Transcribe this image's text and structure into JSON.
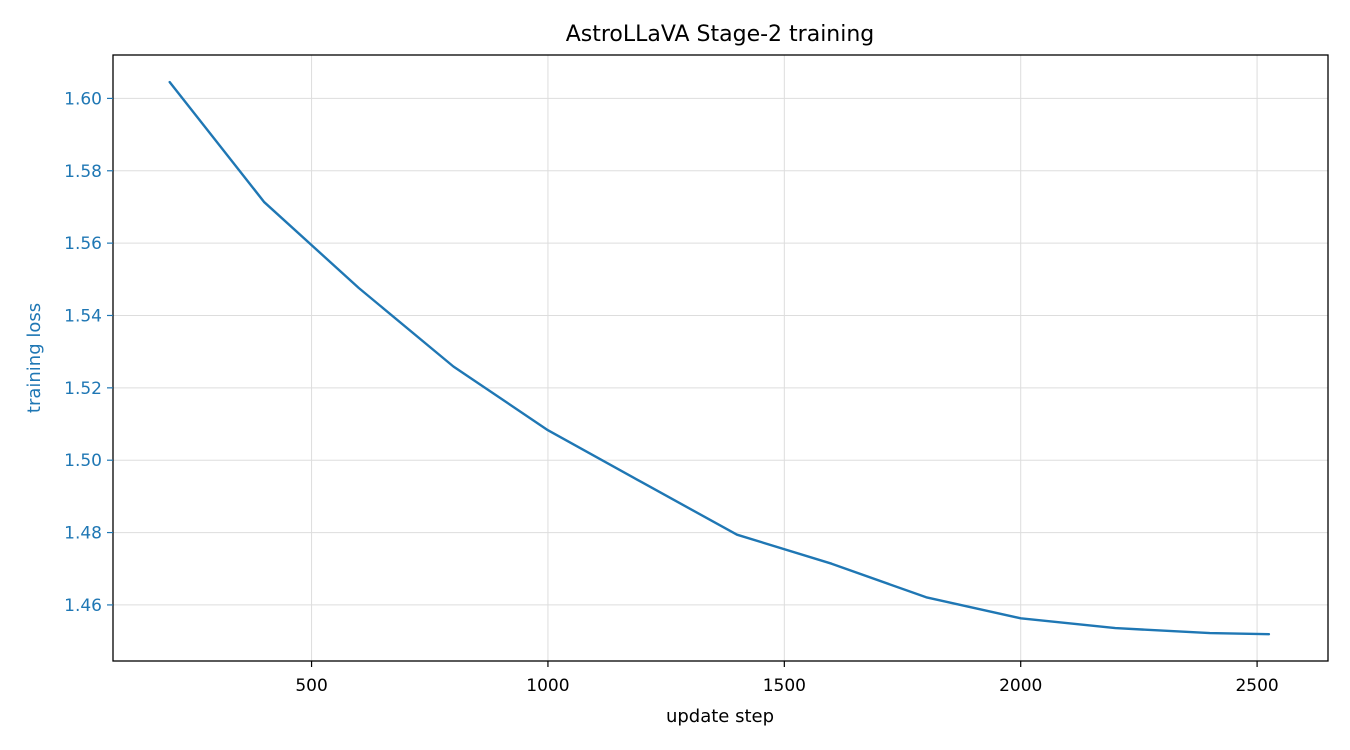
{
  "chart_data": {
    "type": "line",
    "title": "AstroLLaVA Stage-2 training",
    "xlabel": "update step",
    "ylabel": "training loss",
    "xlim": [
      80,
      2650
    ],
    "ylim": [
      1.4445,
      1.612
    ],
    "xticks": [
      500,
      1000,
      1500,
      2000,
      2500
    ],
    "xtick_labels": [
      "500",
      "1000",
      "1500",
      "2000",
      "2500"
    ],
    "yticks": [
      1.46,
      1.48,
      1.5,
      1.52,
      1.54,
      1.56,
      1.58,
      1.6
    ],
    "ytick_labels": [
      "1.46",
      "1.48",
      "1.50",
      "1.52",
      "1.54",
      "1.56",
      "1.58",
      "1.60"
    ],
    "grid": true,
    "legend": "none",
    "series": [
      {
        "color": "#1f77b4",
        "x": [
          200,
          400,
          600,
          800,
          1000,
          1200,
          1400,
          1600,
          1800,
          2000,
          2200,
          2400,
          2525
        ],
        "y": [
          1.6045,
          1.5713,
          1.5476,
          1.5259,
          1.5083,
          1.4938,
          1.4794,
          1.4714,
          1.4621,
          1.4563,
          1.4536,
          1.4522,
          1.4519
        ]
      }
    ],
    "ylabel_color": "#1f77b4",
    "ytick_color": "#1f77b4"
  }
}
